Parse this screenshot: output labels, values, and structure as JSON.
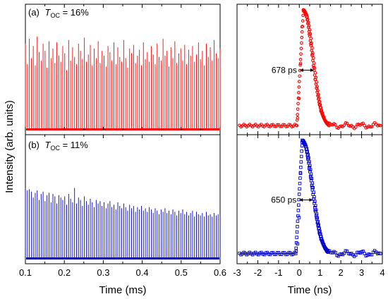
{
  "figure": {
    "ylabel": "Intensity (arb. units)"
  },
  "chart_data": [
    {
      "id": "a_pulse_train",
      "type": "bar",
      "panel_label": "(a)",
      "title_symbol": "T",
      "title_sub": "OC",
      "title_value": " = 16%",
      "xlabel": "",
      "xlim": [
        0.1,
        0.6
      ],
      "ylim": [
        0,
        1.0
      ],
      "color": "#ff0000",
      "x_start": 0.1,
      "x_step": 0.00505,
      "values": [
        0.72,
        0.55,
        0.76,
        0.6,
        0.7,
        0.54,
        0.78,
        0.65,
        0.58,
        0.72,
        0.66,
        0.52,
        0.74,
        0.6,
        0.68,
        0.56,
        0.73,
        0.62,
        0.57,
        0.7,
        0.64,
        0.5,
        0.75,
        0.58,
        0.69,
        0.61,
        0.55,
        0.72,
        0.66,
        0.59,
        0.77,
        0.57,
        0.63,
        0.71,
        0.54,
        0.68,
        0.6,
        0.74,
        0.56,
        0.66,
        0.62,
        0.53,
        0.7,
        0.65,
        0.58,
        0.73,
        0.55,
        0.69,
        0.61,
        0.57,
        0.75,
        0.6,
        0.52,
        0.68,
        0.64,
        0.71,
        0.56,
        0.62,
        0.67,
        0.54,
        0.73,
        0.59,
        0.65,
        0.57,
        0.7,
        0.63,
        0.55,
        0.72,
        0.61,
        0.58,
        0.76,
        0.62,
        0.66,
        0.53,
        0.69,
        0.6,
        0.74,
        0.56,
        0.64,
        0.68,
        0.58,
        0.71,
        0.55,
        0.67,
        0.62,
        0.7,
        0.57,
        0.63,
        0.73,
        0.59,
        0.66,
        0.54,
        0.72,
        0.61,
        0.69,
        0.58,
        0.75,
        0.64,
        0.6,
        0.68
      ]
    },
    {
      "id": "a_single_pulse",
      "type": "scatter",
      "xlabel": "",
      "xlim": [
        -3,
        4
      ],
      "ylim": [
        0,
        1.0
      ],
      "color": "#ff0000",
      "marker": "circle",
      "annotation": "678 ps",
      "annotation_y": 0.5,
      "annotation_x_left": 0.02,
      "annotation_x_right": 0.7
    },
    {
      "id": "b_pulse_train",
      "type": "bar",
      "panel_label": "(b)",
      "title_symbol": "T",
      "title_sub": "OC",
      "title_value": " = 11%",
      "xlabel": "Time (ms)",
      "xlim": [
        0.1,
        0.6
      ],
      "xticks": [
        "0.1",
        "0.2",
        "0.3",
        "0.4",
        "0.5",
        "0.6"
      ],
      "ylim": [
        0,
        1.0
      ],
      "color": "#0000cc",
      "x_start": 0.1,
      "x_step": 0.00505,
      "values": [
        0.6,
        0.58,
        0.59,
        0.57,
        0.52,
        0.56,
        0.58,
        0.5,
        0.55,
        0.57,
        0.49,
        0.54,
        0.56,
        0.48,
        0.55,
        0.53,
        0.47,
        0.54,
        0.52,
        0.5,
        0.53,
        0.46,
        0.55,
        0.51,
        0.48,
        0.6,
        0.47,
        0.52,
        0.5,
        0.45,
        0.53,
        0.49,
        0.46,
        0.51,
        0.48,
        0.44,
        0.5,
        0.47,
        0.49,
        0.45,
        0.48,
        0.43,
        0.47,
        0.49,
        0.44,
        0.46,
        0.42,
        0.48,
        0.45,
        0.43,
        0.47,
        0.44,
        0.41,
        0.46,
        0.43,
        0.45,
        0.4,
        0.44,
        0.42,
        0.45,
        0.41,
        0.43,
        0.4,
        0.44,
        0.42,
        0.39,
        0.43,
        0.41,
        0.38,
        0.42,
        0.4,
        0.43,
        0.39,
        0.41,
        0.38,
        0.42,
        0.4,
        0.37,
        0.41,
        0.39,
        0.42,
        0.38,
        0.4,
        0.37,
        0.39,
        0.41,
        0.36,
        0.4,
        0.38,
        0.37,
        0.39,
        0.36,
        0.4,
        0.37,
        0.38,
        0.36,
        0.39,
        0.37,
        0.38,
        0.37
      ]
    },
    {
      "id": "b_single_pulse",
      "type": "scatter",
      "xlabel": "Time (ns)",
      "xlim": [
        -3,
        4
      ],
      "xticks": [
        "-3",
        "-2",
        "-1",
        "0",
        "1",
        "2",
        "3",
        "4"
      ],
      "ylim": [
        0,
        1.0
      ],
      "color": "#0000cc",
      "marker": "square",
      "annotation": "650 ps",
      "annotation_y": 0.5,
      "annotation_x_left": 0.0,
      "annotation_x_right": 0.65
    }
  ]
}
